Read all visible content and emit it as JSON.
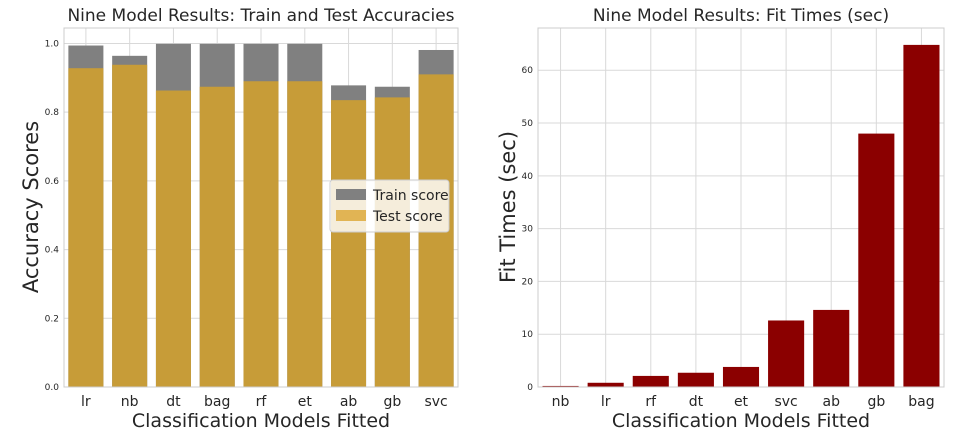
{
  "chart_data": [
    {
      "type": "bar",
      "title": "Nine Model Results:  Train and Test Accuracies",
      "xlabel": "Classification Models Fitted",
      "ylabel": "Accuracy Scores",
      "categories": [
        "lr",
        "nb",
        "dt",
        "bag",
        "rf",
        "et",
        "ab",
        "gb",
        "svc"
      ],
      "ylim": [
        0,
        1.045
      ],
      "yticks": [
        0.0,
        0.2,
        0.4,
        0.6,
        0.8,
        1.0
      ],
      "ytick_labels": [
        "0.0",
        "0.2",
        "0.4",
        "0.6",
        "0.8",
        "1.0"
      ],
      "grid": true,
      "legend_position": "center-right",
      "series": [
        {
          "name": "Train score",
          "color": "#808080",
          "values": [
            0.994,
            0.964,
            0.999,
            0.999,
            0.999,
            0.999,
            0.878,
            0.874,
            0.981
          ]
        },
        {
          "name": "Test score",
          "color": "#c79c38",
          "legend_color": "#e1b454",
          "values": [
            0.928,
            0.938,
            0.863,
            0.874,
            0.89,
            0.89,
            0.835,
            0.843,
            0.91
          ]
        }
      ]
    },
    {
      "type": "bar",
      "title": "Nine Model Results:  Fit Times (sec)",
      "xlabel": "Classification Models Fitted",
      "ylabel": "Fit Times (sec)",
      "categories": [
        "nb",
        "lr",
        "rf",
        "dt",
        "et",
        "svc",
        "ab",
        "gb",
        "bag"
      ],
      "ylim": [
        0,
        68
      ],
      "yticks": [
        0,
        10,
        20,
        30,
        40,
        50,
        60
      ],
      "ytick_labels": [
        "0",
        "10",
        "20",
        "30",
        "40",
        "50",
        "60"
      ],
      "grid": true,
      "series": [
        {
          "name": "",
          "color": "#8b0000",
          "values": [
            0.2,
            0.8,
            2.1,
            2.7,
            3.8,
            12.6,
            14.6,
            48.0,
            64.8
          ]
        }
      ]
    }
  ]
}
